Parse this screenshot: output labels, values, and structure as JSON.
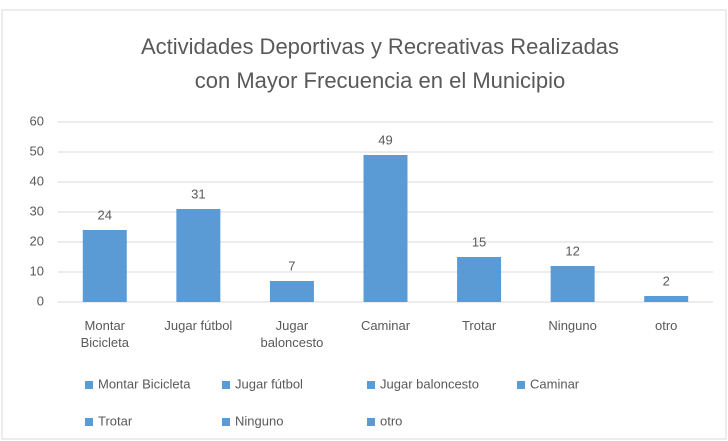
{
  "chart_data": {
    "type": "bar",
    "title": [
      "Actividades Deportivas y Recreativas Realizadas",
      "con Mayor Frecuencia en el Municipio"
    ],
    "categories": [
      "Montar Bicicleta",
      "Jugar fútbol",
      "Jugar baloncesto",
      "Caminar",
      "Trotar",
      "Ninguno",
      "otro"
    ],
    "values": [
      24,
      31,
      7,
      49,
      15,
      12,
      2
    ],
    "color": "#5b9bd5",
    "ylim": [
      0,
      60
    ],
    "yticks": [
      0,
      10,
      20,
      30,
      40,
      50,
      60
    ],
    "grid": true,
    "legend": "bottom"
  }
}
